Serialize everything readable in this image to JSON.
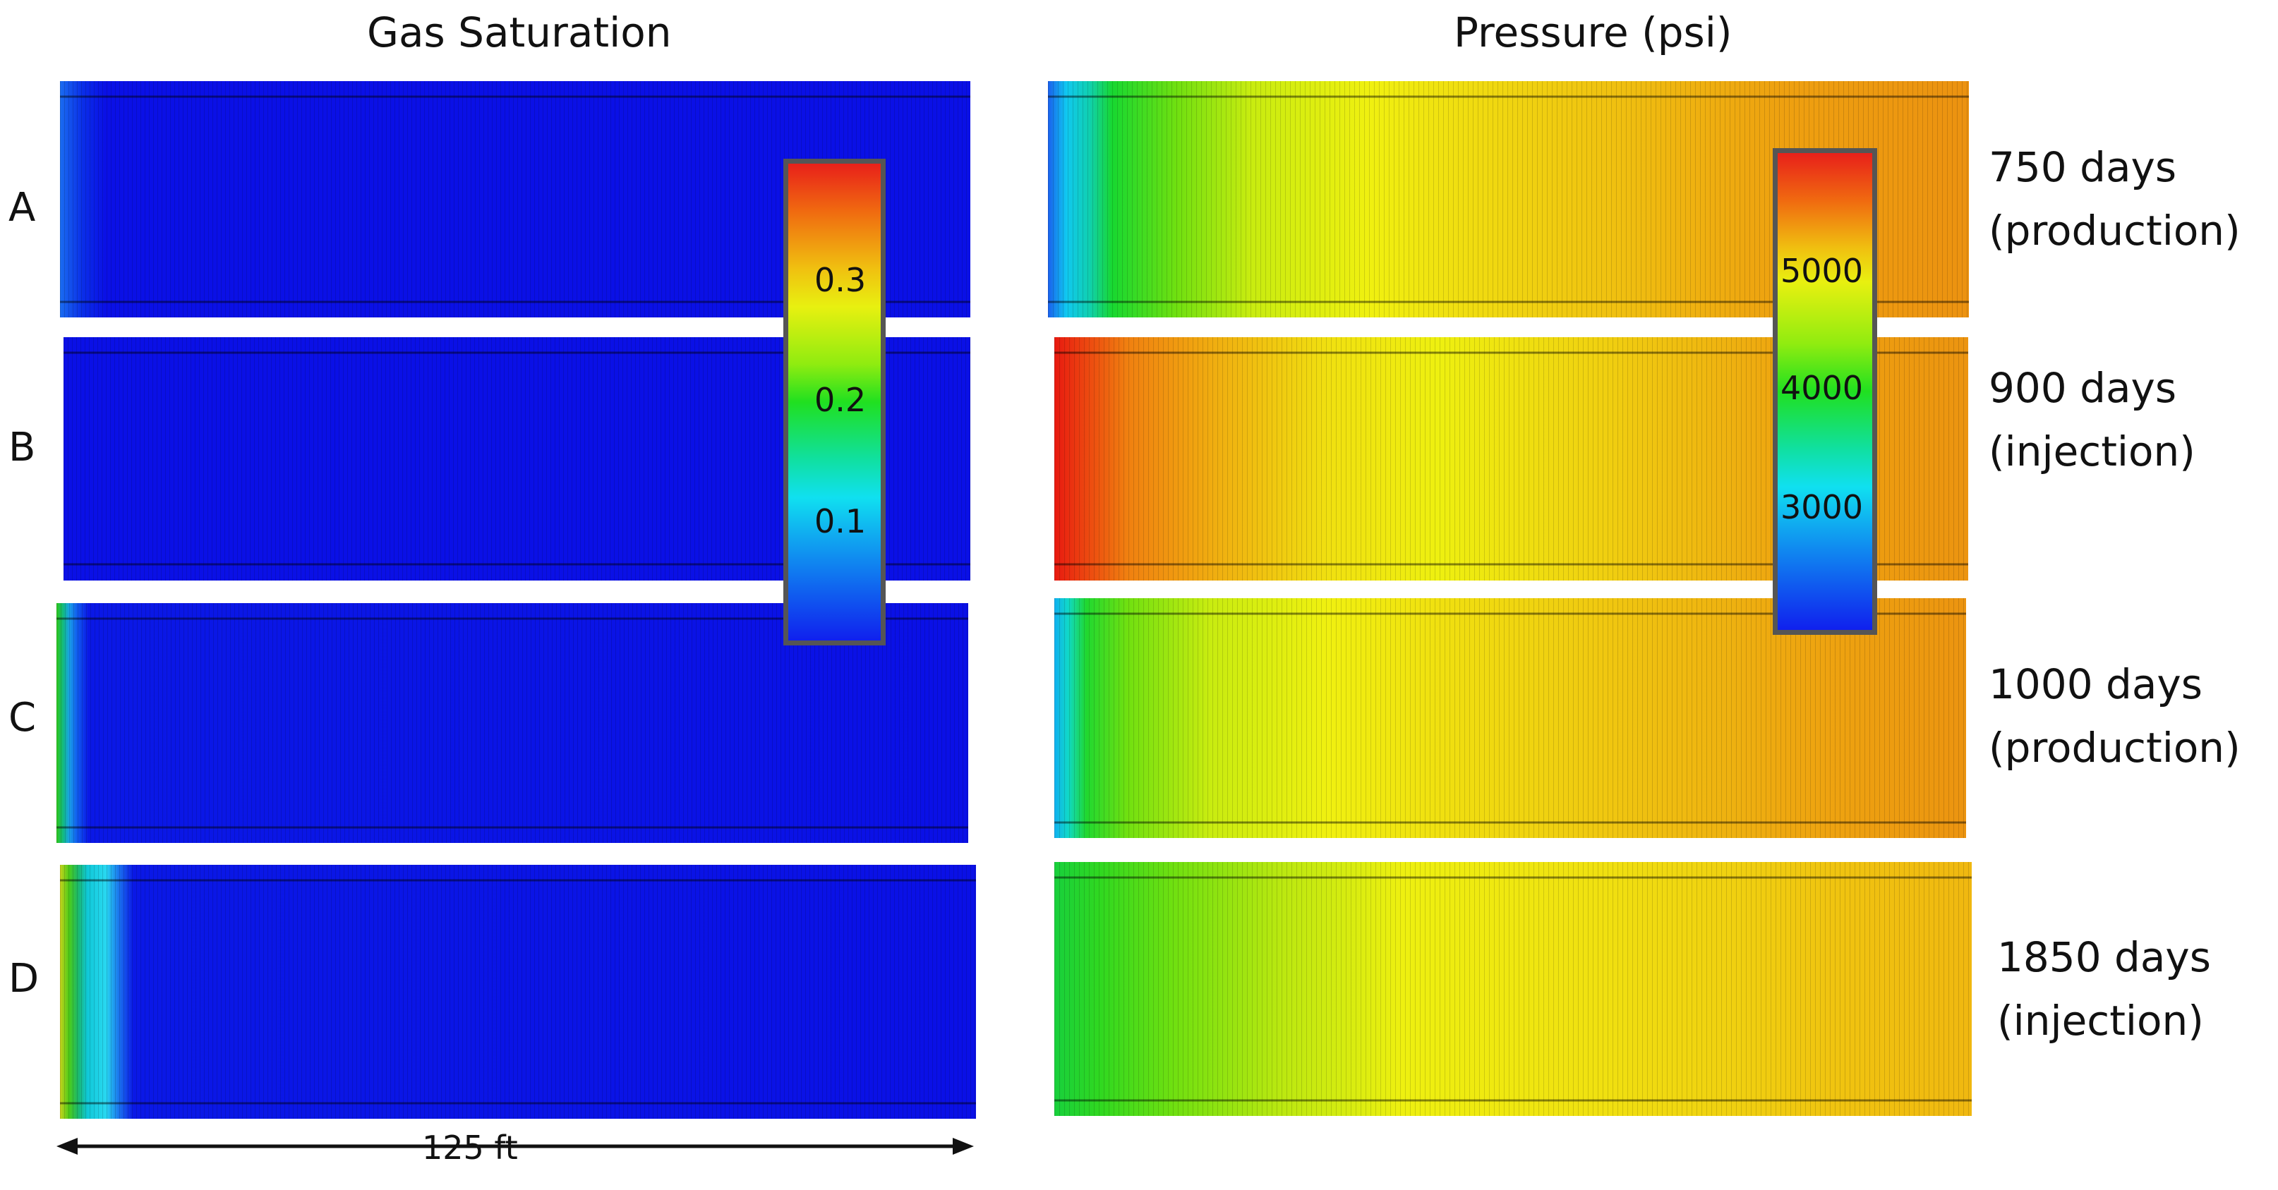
{
  "titles": {
    "left": "Gas Saturation",
    "right": "Pressure (psi)"
  },
  "rows": [
    {
      "label": "A",
      "time_line1": "750 days",
      "time_line2": "(production)"
    },
    {
      "label": "B",
      "time_line1": "900 days",
      "time_line2": "(injection)"
    },
    {
      "label": "C",
      "time_line1": "1000 days",
      "time_line2": "(production)"
    },
    {
      "label": "D",
      "time_line1": "1850 days",
      "time_line2": "(injection)"
    }
  ],
  "colorbars": {
    "gas_saturation": {
      "ticks": [
        "0.3",
        "0.2",
        "0.1"
      ]
    },
    "pressure": {
      "ticks": [
        "5000",
        "4000",
        "3000"
      ]
    }
  },
  "scale": {
    "label": "125 ft"
  }
}
